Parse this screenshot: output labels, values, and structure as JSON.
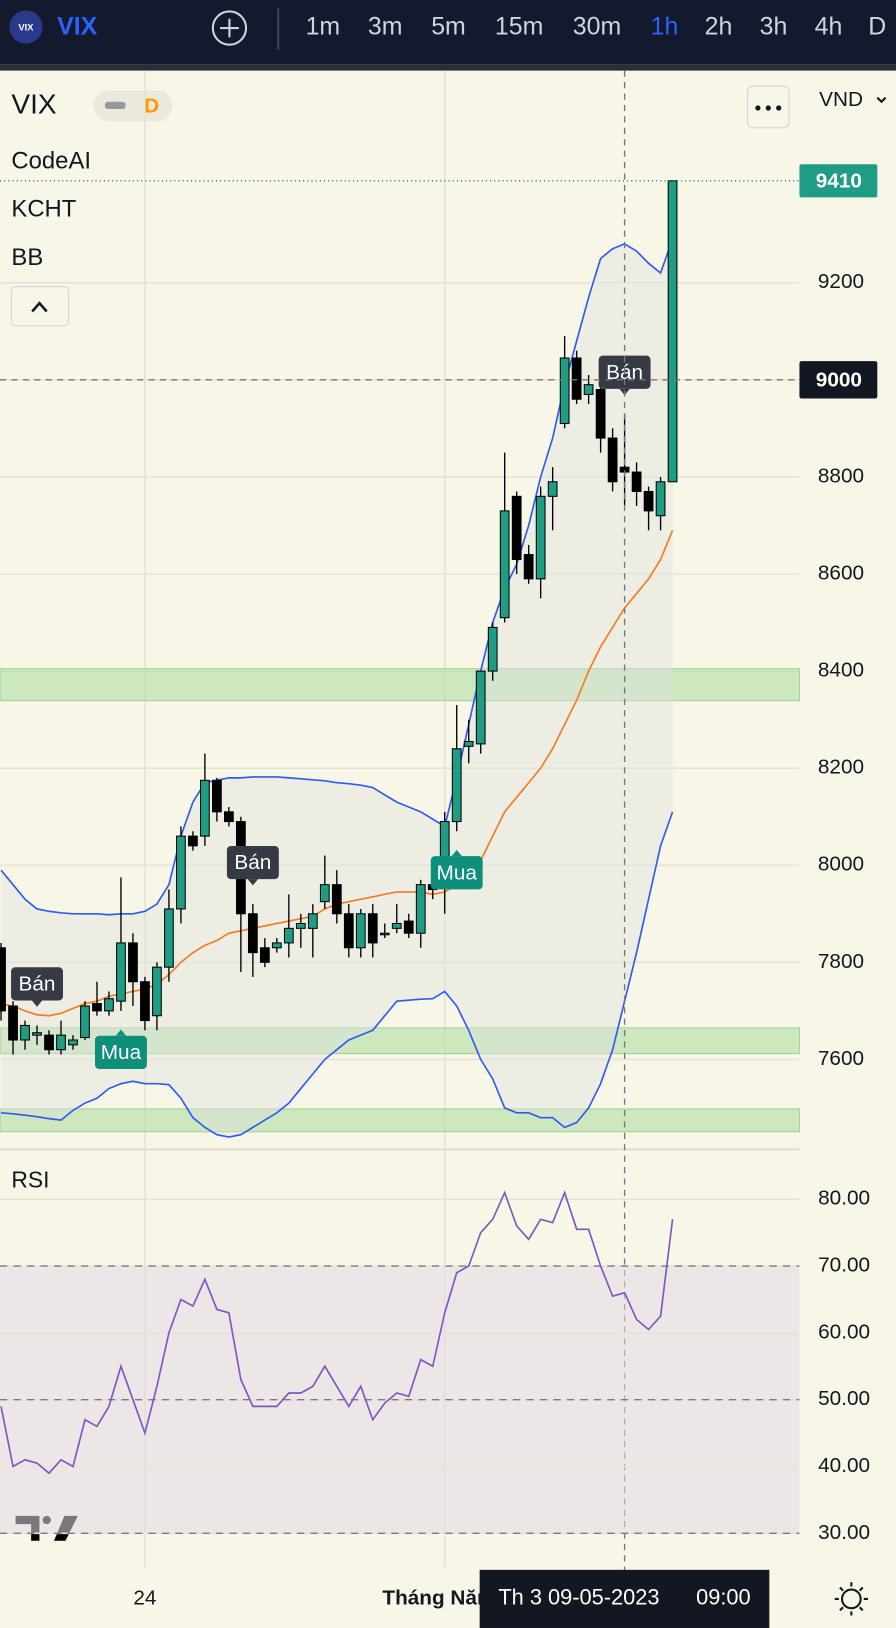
{
  "header": {
    "symbol": "VIX",
    "timeframes": [
      "1m",
      "3m",
      "5m",
      "15m",
      "30m",
      "1h",
      "2h",
      "3h",
      "4h",
      "D"
    ],
    "active_timeframe": "1h"
  },
  "legend": {
    "symbol": "VIX",
    "interval": "D",
    "indicators": [
      "CodeAI",
      "KCHT",
      "BB"
    ],
    "currency": "VND"
  },
  "chart_data": [
    {
      "type": "candlestick",
      "categories": [
        null,
        null,
        null,
        null,
        null,
        null,
        null,
        null,
        null,
        null,
        null,
        null,
        "24",
        null,
        null,
        null,
        null,
        null,
        null,
        null,
        null,
        null,
        null,
        null,
        null,
        null,
        null,
        null,
        null,
        null,
        null,
        null,
        null,
        null,
        null,
        null,
        null,
        "Tháng Năm",
        null,
        null,
        null,
        null,
        null,
        null,
        null,
        null,
        null,
        null,
        null,
        null,
        null,
        null,
        null,
        null,
        null,
        null,
        null
      ],
      "open": [
        7830,
        7710,
        7640,
        7650,
        7650,
        7620,
        7630,
        7645,
        7715,
        7700,
        7720,
        7840,
        7760,
        7690,
        7790,
        7910,
        8060,
        8060,
        8175,
        8110,
        8090,
        7900,
        7830,
        7830,
        7840,
        7870,
        7870,
        7925,
        7960,
        7900,
        7830,
        7900,
        7860,
        7870,
        7885,
        7860,
        7960,
        7960,
        8090,
        8245,
        8250,
        8400,
        8510,
        8760,
        8640,
        8590,
        8760,
        8910,
        9045,
        8970,
        8980,
        8880,
        8820,
        8810,
        8770,
        8720,
        8790
      ],
      "high": [
        7840,
        7720,
        7680,
        7670,
        7660,
        7680,
        7650,
        7720,
        7760,
        7740,
        7975,
        7860,
        7770,
        7800,
        7950,
        8080,
        8070,
        8230,
        8180,
        8120,
        8100,
        7920,
        7850,
        7850,
        7940,
        7900,
        7920,
        8020,
        7990,
        7920,
        7910,
        7920,
        7880,
        7920,
        7900,
        7970,
        7980,
        8110,
        8330,
        8300,
        8400,
        8500,
        8850,
        8770,
        8660,
        8780,
        8820,
        9090,
        9060,
        9010,
        8990,
        8900,
        8930,
        8830,
        8780,
        8800,
        9410
      ],
      "low": [
        7680,
        7610,
        7620,
        7630,
        7610,
        7610,
        7620,
        7640,
        7690,
        7690,
        7700,
        7710,
        7660,
        7660,
        7760,
        7880,
        8030,
        8040,
        8090,
        8080,
        7780,
        7770,
        7790,
        7820,
        7810,
        7830,
        7810,
        7910,
        7880,
        7810,
        7810,
        7810,
        7850,
        7860,
        7850,
        7830,
        7930,
        7900,
        8070,
        8210,
        8230,
        8380,
        8500,
        8600,
        8580,
        8550,
        8690,
        8900,
        8950,
        8950,
        8850,
        8770,
        8740,
        8740,
        8690,
        8690,
        8790
      ],
      "close": [
        7700,
        7640,
        7670,
        7655,
        7620,
        7650,
        7640,
        7710,
        7700,
        7725,
        7840,
        7760,
        7680,
        7790,
        7910,
        8060,
        8040,
        8175,
        8110,
        8090,
        7900,
        7820,
        7800,
        7840,
        7870,
        7880,
        7900,
        7960,
        7900,
        7830,
        7900,
        7840,
        7860,
        7880,
        7860,
        7960,
        7950,
        8090,
        8240,
        8255,
        8400,
        8490,
        8730,
        8630,
        8590,
        8760,
        8790,
        9045,
        8960,
        8990,
        8880,
        8790,
        8810,
        8770,
        8730,
        8790,
        9410
      ],
      "up_color": "#1f9c84",
      "down_color": "#000000",
      "series": [
        {
          "color": "#2f5cf0",
          "values": [
            7990,
            7960,
            7930,
            7910,
            7905,
            7902,
            7900,
            7900,
            7900,
            7898,
            7900,
            7900,
            7905,
            7920,
            7960,
            8060,
            8130,
            8170,
            8175,
            8180,
            8180,
            8182,
            8182,
            8182,
            8180,
            8178,
            8176,
            8174,
            8170,
            8168,
            8165,
            8160,
            8145,
            8130,
            8120,
            8110,
            8095,
            8080,
            8180,
            8290,
            8400,
            8500,
            8570,
            8620,
            8700,
            8800,
            8880,
            8990,
            9080,
            9170,
            9250,
            9270,
            9280,
            9265,
            9240,
            9220,
            9290
          ]
        },
        {
          "color": "#f57c20",
          "values": [
            7714,
            7710,
            7700,
            7692,
            7690,
            7695,
            7705,
            7715,
            7720,
            7730,
            7735,
            7740,
            7745,
            7755,
            7775,
            7800,
            7820,
            7835,
            7845,
            7860,
            7865,
            7870,
            7875,
            7880,
            7885,
            7890,
            7895,
            7910,
            7920,
            7925,
            7930,
            7935,
            7940,
            7945,
            7945,
            7945,
            7940,
            7945,
            7960,
            7975,
            8010,
            8060,
            8110,
            8140,
            8170,
            8200,
            8240,
            8290,
            8340,
            8400,
            8450,
            8490,
            8530,
            8560,
            8590,
            8630,
            8690
          ]
        },
        {
          "color": "#2f5cf0",
          "values": [
            7490,
            7488,
            7485,
            7482,
            7478,
            7475,
            7495,
            7510,
            7520,
            7540,
            7550,
            7555,
            7550,
            7550,
            7548,
            7520,
            7480,
            7460,
            7445,
            7440,
            7445,
            7460,
            7475,
            7490,
            7510,
            7540,
            7570,
            7600,
            7620,
            7640,
            7650,
            7660,
            7690,
            7720,
            7722,
            7724,
            7725,
            7740,
            7710,
            7660,
            7600,
            7560,
            7500,
            7490,
            7490,
            7480,
            7480,
            7460,
            7470,
            7500,
            7550,
            7620,
            7720,
            7820,
            7930,
            8040,
            8110
          ]
        }
      ],
      "zones": [
        [
          8339,
          8405
        ],
        [
          7612,
          7665
        ],
        [
          7451,
          7498
        ]
      ],
      "signals": [
        {
          "index": 3,
          "label": "Bán"
        },
        {
          "index": 10,
          "label": "Mua"
        },
        {
          "index": 21,
          "label": "Bán"
        },
        {
          "index": 38,
          "label": "Mua"
        },
        {
          "index": 52,
          "label": "Bán"
        }
      ],
      "ylim": [
        7419,
        9637
      ],
      "yticks": [
        7600,
        7800,
        8000,
        8200,
        8400,
        8600,
        8800,
        9000,
        9200
      ],
      "last_price": 9410,
      "crosshair": {
        "index": 52,
        "price": 9000,
        "date": "Th 3 09-05-2023",
        "time": "09:00"
      },
      "grid": true
    },
    {
      "type": "line",
      "title": "RSI",
      "color": "#7e57c2",
      "values": [
        49,
        40,
        41,
        40.5,
        39,
        41,
        40,
        47,
        46,
        49,
        55,
        50,
        45,
        52,
        60,
        65,
        64,
        68,
        63.5,
        63,
        53,
        49,
        49,
        49,
        51,
        51,
        52,
        55,
        52,
        49,
        52,
        47,
        49.5,
        51,
        50.5,
        56,
        55,
        63,
        69,
        70,
        75,
        77,
        81,
        76,
        74,
        77,
        76.5,
        81,
        75.5,
        75.5,
        70,
        65.5,
        66,
        62,
        60.5,
        62.5,
        77
      ],
      "ylim": [
        26.4,
        87
      ],
      "yticks": [
        {
          "value": 30,
          "label": "30.00"
        },
        {
          "value": 40,
          "label": "40.00"
        },
        {
          "value": 50,
          "label": "50.00"
        },
        {
          "value": 60,
          "label": "60.00"
        },
        {
          "value": 70,
          "label": "70.00"
        },
        {
          "value": 80,
          "label": "80.00"
        }
      ],
      "band": [
        30,
        70
      ],
      "mid": 50,
      "grid": true
    }
  ]
}
